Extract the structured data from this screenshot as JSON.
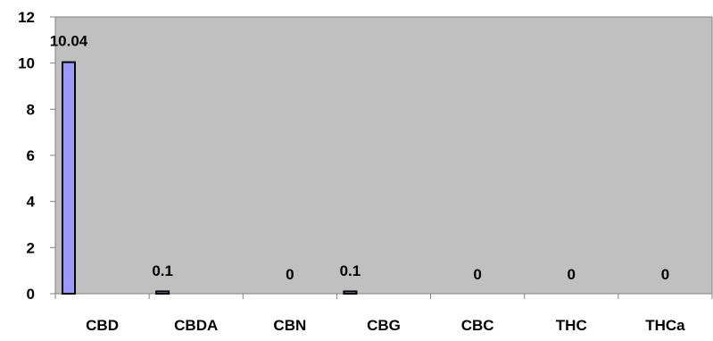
{
  "chart_data": {
    "type": "bar",
    "categories": [
      "CBD",
      "CBDA",
      "CBN",
      "CBG",
      "CBC",
      "THC",
      "THCa"
    ],
    "values": [
      10.04,
      0.1,
      0,
      0.1,
      0,
      0,
      0
    ],
    "data_labels": [
      "10.04",
      "0.1",
      "0",
      "0.1",
      "0",
      "0",
      "0"
    ],
    "title": "",
    "xlabel": "",
    "ylabel": "",
    "ylim": [
      0,
      12
    ],
    "yticks": [
      0,
      2,
      4,
      6,
      8,
      10,
      12
    ],
    "grid": false,
    "legend": "none",
    "colors": {
      "plot_background": "#c0c0c0",
      "bar_fill": "#9999ff",
      "bar_stroke": "#000000",
      "axis": "#808080"
    }
  }
}
